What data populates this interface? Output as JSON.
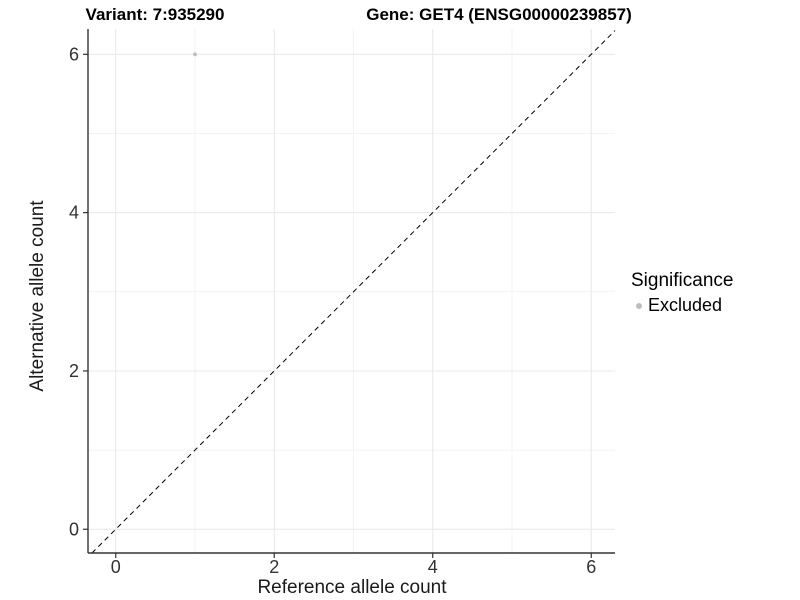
{
  "chart_data": {
    "type": "scatter",
    "title_left": "Variant: 7:935290",
    "title_right": "Gene: GET4 (ENSG00000239857)",
    "xlabel": "Reference allele count",
    "ylabel": "Alternative allele count",
    "x_ticks": [
      0,
      2,
      4,
      6
    ],
    "y_ticks": [
      0,
      2,
      4,
      6
    ],
    "x_minor_ticks": [
      1,
      3,
      5
    ],
    "y_minor_ticks": [
      1,
      3,
      5
    ],
    "xlim": [
      -0.35,
      6.3
    ],
    "ylim": [
      -0.3,
      6.32
    ],
    "grid": "major-and-minor",
    "legend_position": "right",
    "points": [
      {
        "x": 1,
        "y": 6,
        "significance": "Excluded"
      }
    ],
    "reference_line": {
      "slope": 1,
      "intercept": 0,
      "linetype": "dashed",
      "color": "#000000"
    },
    "legend": {
      "title": "Significance",
      "items": [
        {
          "label": "Excluded",
          "color": "#bdbdbd"
        }
      ]
    },
    "colors": {
      "point": "#bdbdbd",
      "grid_major": "#e8e8e8",
      "grid_minor": "#f3f3f3",
      "axis_line": "#333333",
      "tick_label": "#333333"
    }
  }
}
